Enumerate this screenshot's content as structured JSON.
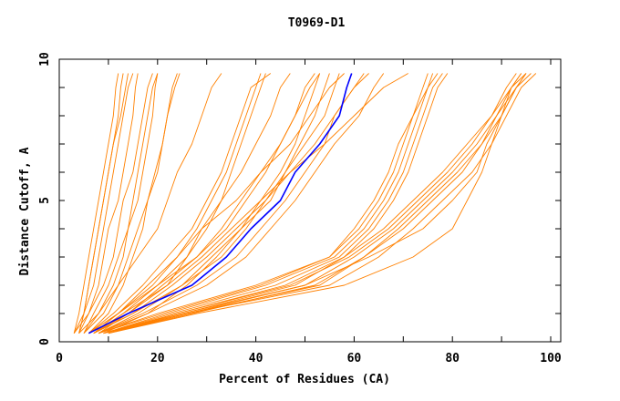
{
  "chart_data": {
    "type": "line",
    "title": "T0969-D1",
    "xlabel": "Percent of Residues (CA)",
    "ylabel": "Distance Cutoff, A",
    "xlim": [
      0,
      102
    ],
    "ylim": [
      0,
      10
    ],
    "x_ticks": [
      0,
      20,
      40,
      60,
      80,
      100
    ],
    "y_ticks": [
      0,
      5,
      10
    ],
    "grid": false,
    "colors": {
      "others": "#ff8000",
      "highlight": "#0000ff"
    },
    "y_levels": [
      0.3,
      1,
      2,
      3,
      4,
      5,
      6,
      7,
      8,
      9,
      9.5
    ],
    "series_others": [
      [
        3,
        4,
        5,
        6,
        7,
        8,
        9,
        10,
        11,
        11.5,
        12
      ],
      [
        3,
        5,
        6,
        7,
        8,
        9,
        10,
        11,
        12,
        12.5,
        13
      ],
      [
        4,
        5,
        7,
        8,
        9,
        10,
        11,
        12,
        13,
        14,
        15
      ],
      [
        3,
        6,
        8,
        9,
        10,
        12,
        13,
        14,
        15,
        15.5,
        16
      ],
      [
        4,
        6,
        9,
        11,
        12,
        13,
        15,
        16,
        17,
        18,
        19
      ],
      [
        5,
        7,
        10,
        12,
        14,
        15,
        16,
        17,
        18,
        19,
        20
      ],
      [
        4,
        5,
        6,
        7,
        8,
        9,
        10,
        11,
        12.5,
        13.5,
        14
      ],
      [
        5,
        8,
        11,
        13,
        14,
        16,
        17,
        18,
        19,
        19.5,
        20
      ],
      [
        6,
        10,
        13,
        15,
        17,
        18,
        20,
        21,
        22,
        23,
        24
      ],
      [
        5,
        9,
        12,
        14,
        16,
        18,
        19.5,
        21,
        22,
        23.5,
        24.5
      ],
      [
        4,
        8,
        12,
        16,
        20,
        22,
        24,
        27,
        29,
        31,
        33
      ],
      [
        6,
        12,
        18,
        24,
        28,
        31,
        34,
        36,
        38,
        40,
        41
      ],
      [
        7,
        13,
        20,
        26,
        30,
        33,
        35,
        37,
        39,
        41,
        42
      ],
      [
        6,
        11,
        17,
        22,
        27,
        30,
        33,
        35,
        37,
        39,
        43
      ],
      [
        7,
        14,
        22,
        26,
        29,
        33,
        37,
        40,
        43,
        45,
        47
      ],
      [
        6,
        12,
        20,
        28,
        34,
        38,
        42,
        45,
        48,
        50,
        52
      ],
      [
        7,
        15,
        25,
        33,
        38,
        42,
        46,
        49,
        52,
        54,
        55
      ],
      [
        8,
        14,
        21,
        28,
        33,
        37,
        41,
        45,
        48,
        51,
        53
      ],
      [
        7,
        13,
        22,
        29,
        35,
        41,
        45,
        48,
        50,
        52,
        53
      ],
      [
        8,
        16,
        25,
        31,
        37,
        43,
        46,
        50,
        54,
        56,
        57
      ],
      [
        7,
        12,
        19,
        24,
        29,
        36,
        41,
        47,
        51,
        55,
        58
      ],
      [
        8,
        17,
        28,
        36,
        41,
        46,
        50,
        54,
        56,
        60,
        62
      ],
      [
        8,
        18,
        30,
        38,
        43,
        48,
        52,
        56,
        61,
        64,
        66
      ],
      [
        7,
        15,
        23,
        30,
        36,
        42,
        47,
        52,
        56,
        60,
        63
      ],
      [
        9,
        18,
        26,
        32,
        37,
        41,
        47,
        54,
        60,
        66,
        71
      ],
      [
        8,
        20,
        40,
        55,
        61,
        65,
        68,
        70,
        72,
        75,
        77
      ],
      [
        9,
        22,
        42,
        56,
        62,
        66,
        69,
        71,
        73,
        75,
        76
      ],
      [
        9,
        23,
        44,
        57,
        63,
        67,
        70,
        72,
        74,
        76,
        78
      ],
      [
        10,
        24,
        46,
        58,
        64,
        68,
        71,
        73,
        75,
        77,
        79
      ],
      [
        8,
        21,
        41,
        55,
        60,
        64,
        67,
        69,
        72,
        74,
        75
      ],
      [
        9,
        25,
        48,
        58,
        66,
        72,
        78,
        83,
        88,
        92,
        94
      ],
      [
        10,
        26,
        50,
        60,
        68,
        74,
        80,
        85,
        89,
        93,
        95
      ],
      [
        9,
        24,
        47,
        59,
        67,
        73,
        79,
        84,
        88,
        91,
        93
      ],
      [
        10,
        27,
        52,
        62,
        70,
        76,
        82,
        86,
        90,
        93,
        96
      ],
      [
        9,
        26,
        55,
        65,
        72,
        78,
        84,
        88,
        91,
        94,
        97
      ],
      [
        10,
        28,
        58,
        72,
        80,
        83,
        86,
        88,
        90,
        93,
        95
      ],
      [
        9,
        25,
        50,
        63,
        74,
        80,
        85,
        87,
        90,
        92,
        94
      ],
      [
        10,
        26,
        53,
        62,
        69,
        75,
        81,
        86,
        89,
        92,
        95
      ]
    ],
    "series_highlight": [
      6,
      14,
      27,
      34,
      39,
      45,
      48,
      53,
      57,
      58.5,
      59.5
    ]
  }
}
